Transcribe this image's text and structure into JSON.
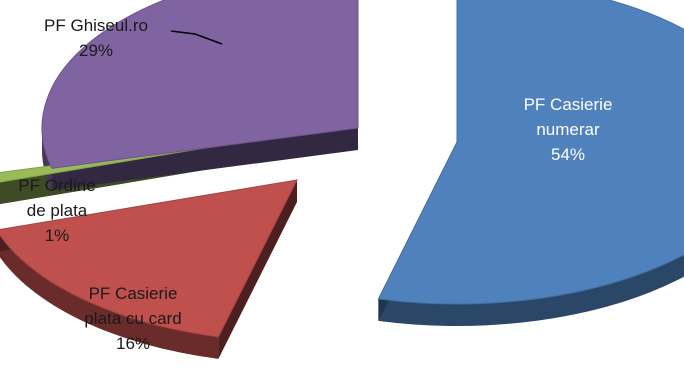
{
  "chart_data": {
    "type": "pie",
    "style": "3d-exploded",
    "slices": [
      {
        "key": "numerar",
        "label_lines": [
          "PF Casierie",
          "numerar"
        ],
        "value": 54,
        "value_label": "54%",
        "color": "#4f81bd"
      },
      {
        "key": "card",
        "label_lines": [
          "PF Casierie",
          "plata cu card"
        ],
        "value": 16,
        "value_label": "16%",
        "color": "#c0504d"
      },
      {
        "key": "ordine",
        "label_lines": [
          "PF Ordine",
          "de plata"
        ],
        "value": 1,
        "value_label": "1%",
        "color": "#9bbb59"
      },
      {
        "key": "ghiseul",
        "label_lines": [
          "PF Ghiseul.ro"
        ],
        "value": 29,
        "value_label": "29%",
        "color": "#8064a2"
      }
    ],
    "legend": "none",
    "data_labels": "category-and-percent"
  }
}
